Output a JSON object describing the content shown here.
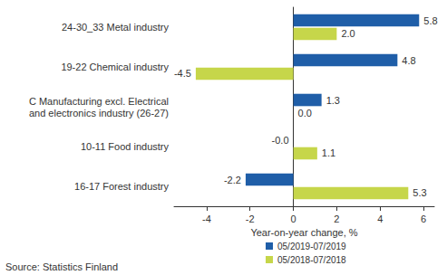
{
  "chart_data": {
    "type": "bar",
    "orientation": "horizontal",
    "categories": [
      "24-30_33 Metal industry",
      "19-22 Chemical industry",
      "C Manufacturing excl. Electrical\nand electronics industry (26-27)",
      "10-11 Food industry",
      "16-17 Forest industry"
    ],
    "series": [
      {
        "name": "05/2019-07/2019",
        "color": "#1f5ea8",
        "values": [
          5.8,
          4.8,
          1.3,
          -0.0,
          -2.2
        ],
        "value_labels": [
          "5.8",
          "4.8",
          "1.3",
          "-0.0",
          "-2.2"
        ]
      },
      {
        "name": "05/2018-07/2018",
        "color": "#c6d64a",
        "values": [
          2.0,
          -4.5,
          0.0,
          1.1,
          5.3
        ],
        "value_labels": [
          "2.0",
          "-4.5",
          "0.0",
          "1.1",
          "5.3"
        ]
      }
    ],
    "x_label": "Year-on-year change, %",
    "xlim": [
      -5.5,
      6.5
    ],
    "xticks": [
      -4,
      -2,
      0,
      2,
      4,
      6
    ],
    "grid": false,
    "legend": "bottom",
    "data_labels": true,
    "annotations": [
      "Source: Statistics Finland"
    ]
  }
}
